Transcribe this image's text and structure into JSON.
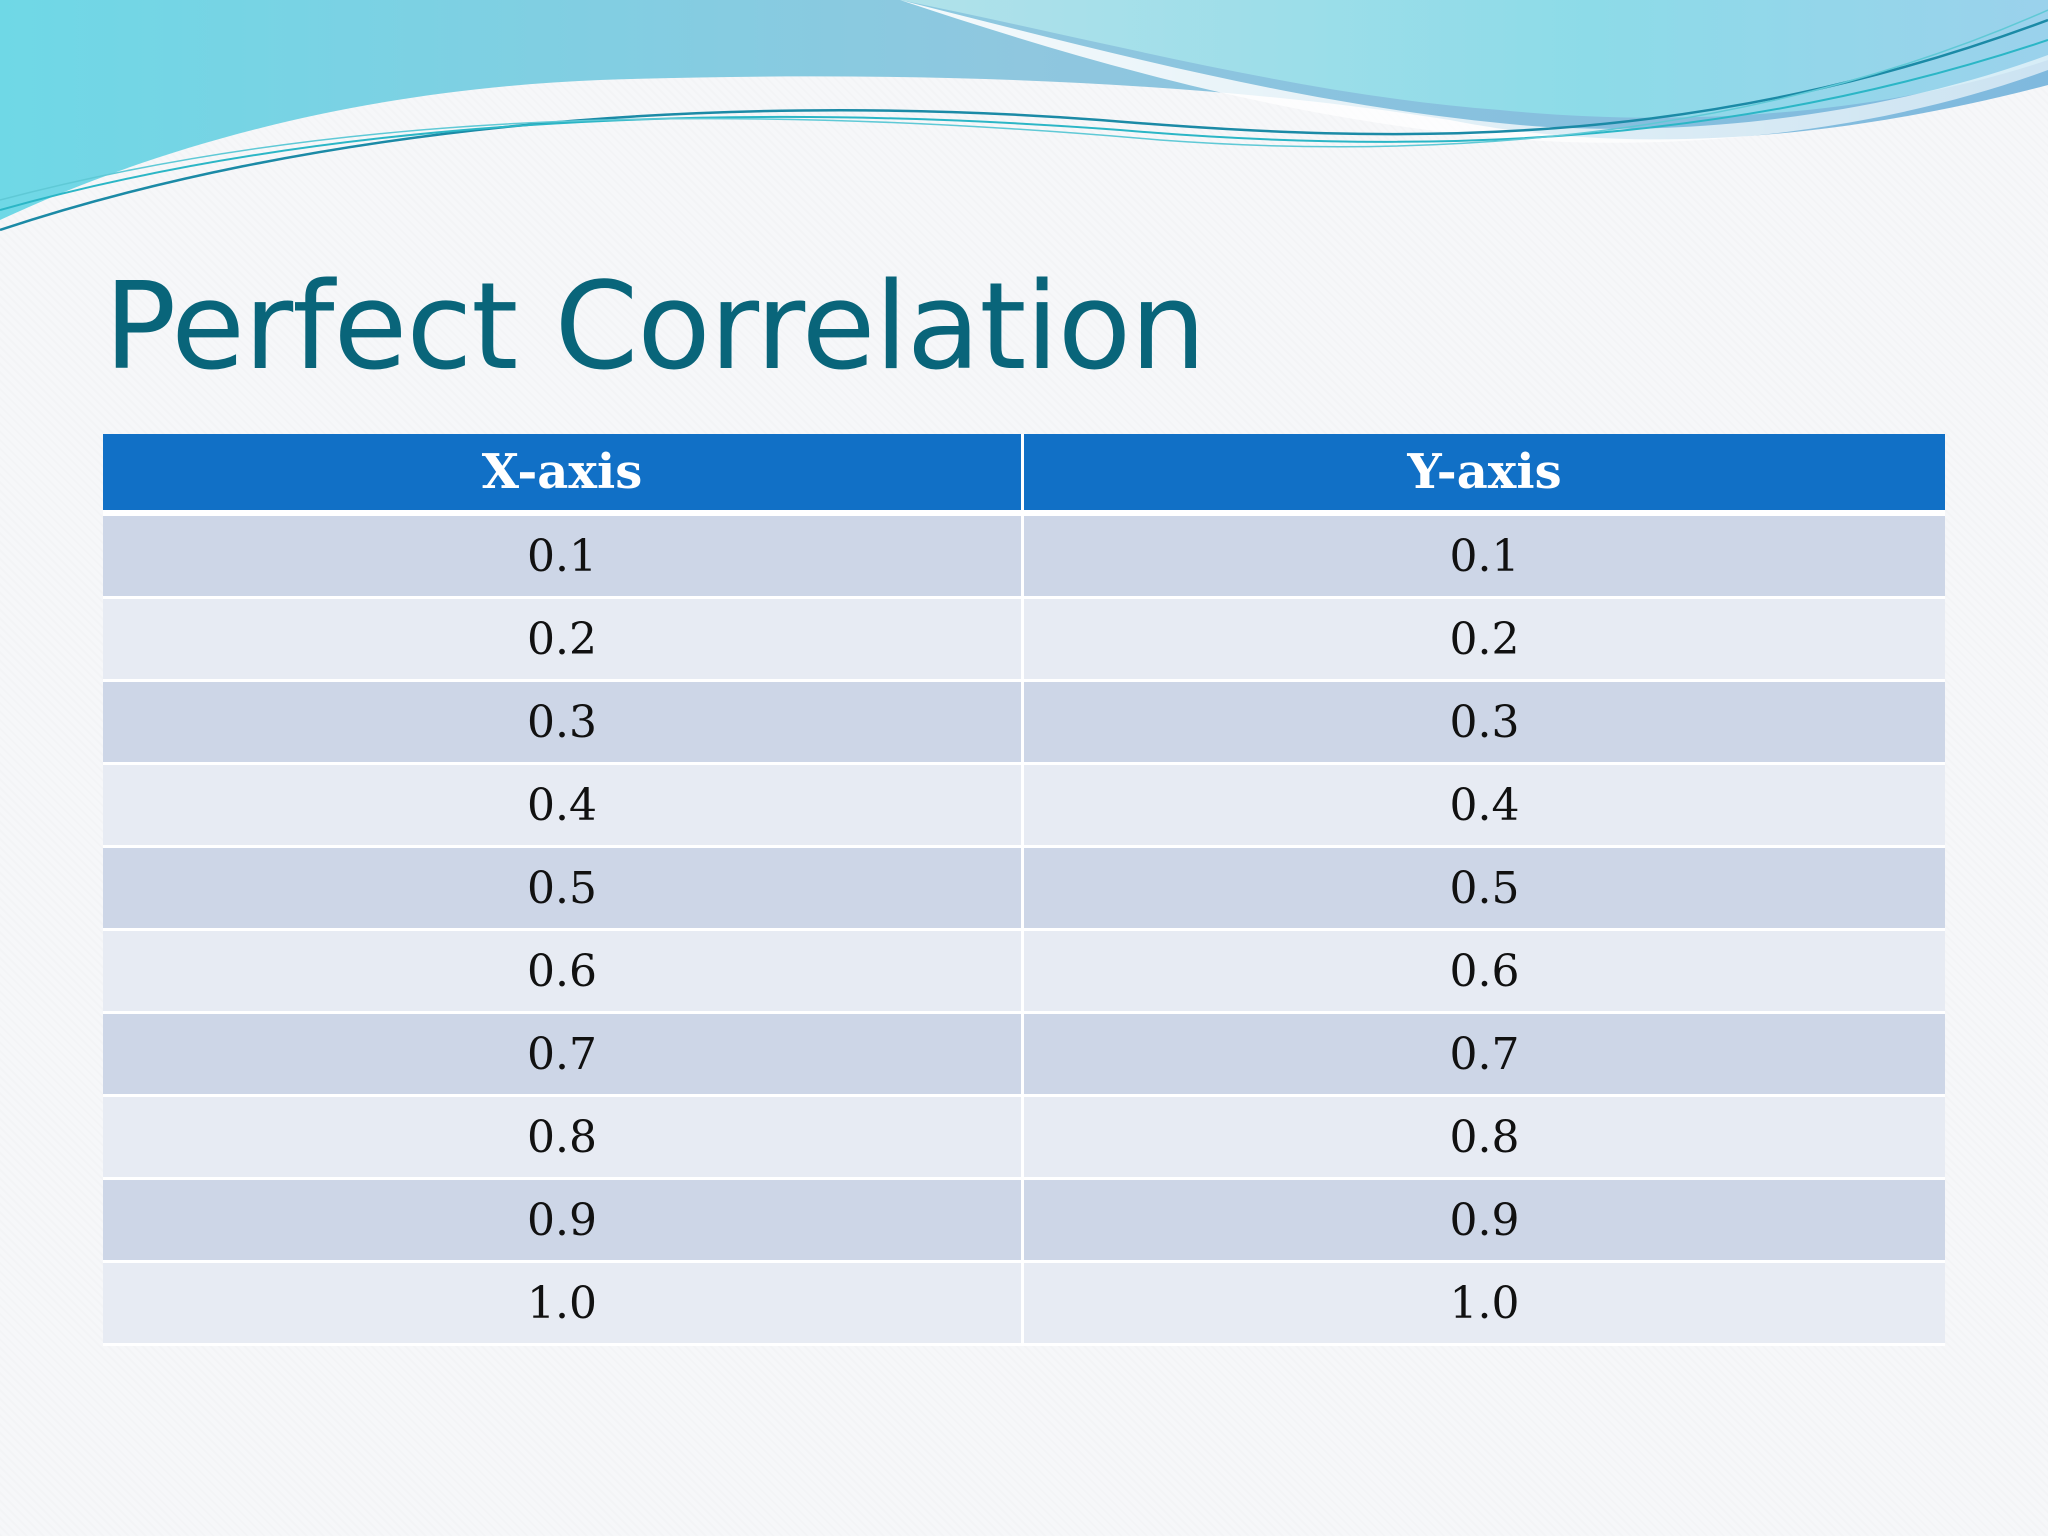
{
  "slide": {
    "title": "Perfect Correlation"
  },
  "table": {
    "headers": [
      "X-axis",
      "Y-axis"
    ],
    "rows": [
      [
        "0.1",
        "0.1"
      ],
      [
        "0.2",
        "0.2"
      ],
      [
        "0.3",
        "0.3"
      ],
      [
        "0.4",
        "0.4"
      ],
      [
        "0.5",
        "0.5"
      ],
      [
        "0.6",
        "0.6"
      ],
      [
        "0.7",
        "0.7"
      ],
      [
        "0.8",
        "0.8"
      ],
      [
        "0.9",
        "0.9"
      ],
      [
        "1.0",
        "1.0"
      ]
    ]
  },
  "colors": {
    "title": "#09657a",
    "header_bg": "#1170c6",
    "row_odd": "#cdd6e7",
    "row_even": "#e7ebf3"
  }
}
